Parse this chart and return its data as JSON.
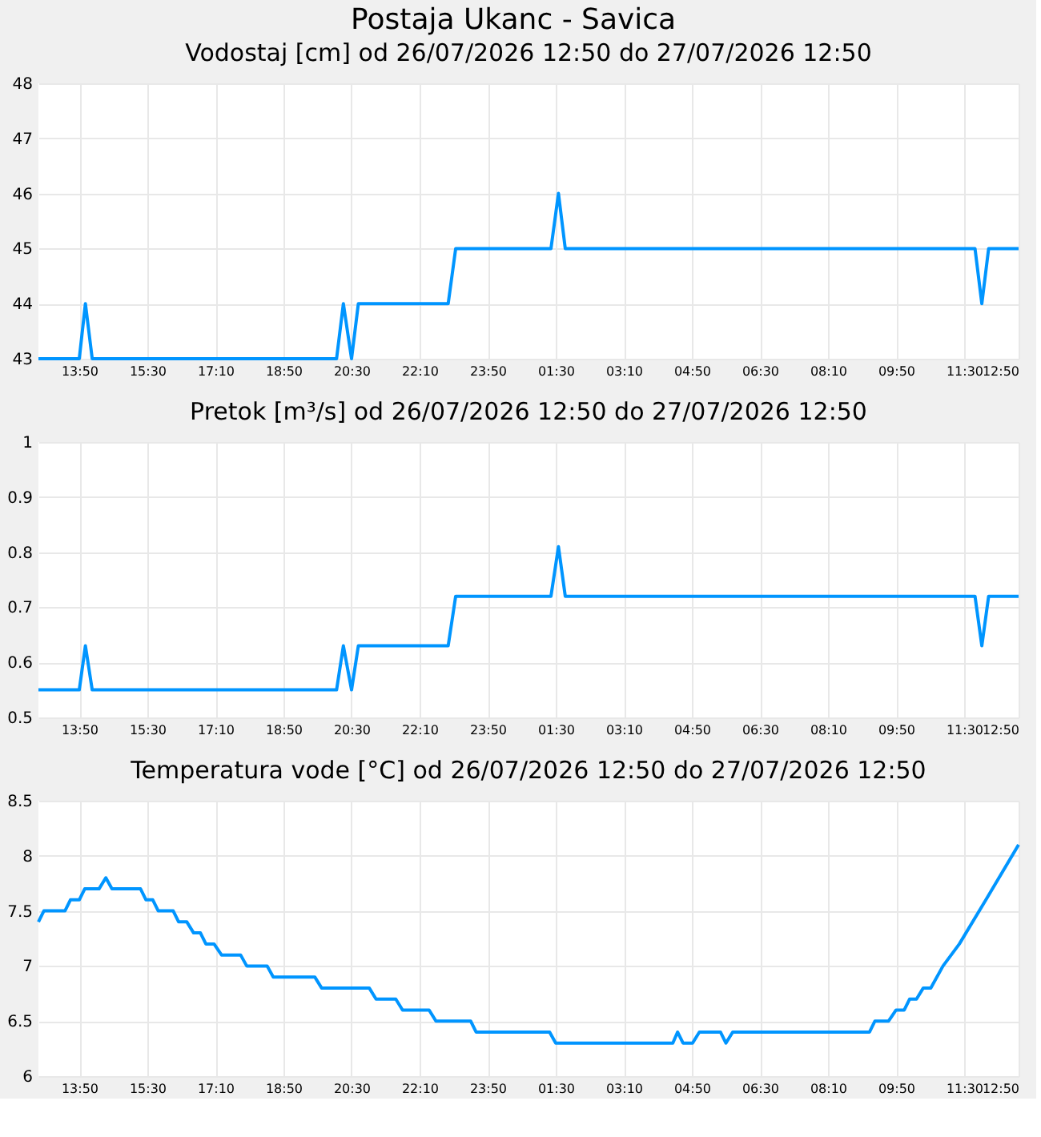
{
  "chart_data": [
    {
      "type": "line",
      "title": "Postaja Ukanc - Savica",
      "subtitle": "Vodostaj [cm] od 26/07/2026 12:50 do 27/07/2026 12:50",
      "grid": true,
      "marker": "none",
      "line_style": "solid",
      "xlim": [
        "2026-07-26T12:50",
        "2026-07-27T12:50"
      ],
      "xticks": [
        {
          "value": "2026-07-26T13:50",
          "label": "13:50"
        },
        {
          "value": "2026-07-26T15:30",
          "label": "15:30"
        },
        {
          "value": "2026-07-26T17:10",
          "label": "17:10"
        },
        {
          "value": "2026-07-26T18:50",
          "label": "18:50"
        },
        {
          "value": "2026-07-26T20:30",
          "label": "20:30"
        },
        {
          "value": "2026-07-26T22:10",
          "label": "22:10"
        },
        {
          "value": "2026-07-26T23:50",
          "label": "23:50"
        },
        {
          "value": "2026-07-27T01:30",
          "label": "01:30"
        },
        {
          "value": "2026-07-27T03:10",
          "label": "03:10"
        },
        {
          "value": "2026-07-27T04:50",
          "label": "04:50"
        },
        {
          "value": "2026-07-27T06:30",
          "label": "06:30"
        },
        {
          "value": "2026-07-27T08:10",
          "label": "08:10"
        },
        {
          "value": "2026-07-27T09:50",
          "label": "09:50"
        },
        {
          "value": "2026-07-27T11:30",
          "label": "11:30"
        },
        {
          "value": "2026-07-27T12:50",
          "label": "12:50"
        }
      ],
      "ylim": [
        43,
        48
      ],
      "yticks": [
        43,
        44,
        45,
        46,
        47,
        48
      ],
      "series": [
        {
          "color": "#0095ff",
          "x": [
            "2026-07-26T12:50",
            "2026-07-26T13:50",
            "2026-07-26T13:59",
            "2026-07-26T14:09",
            "2026-07-26T20:08",
            "2026-07-26T20:18",
            "2026-07-26T20:30",
            "2026-07-26T20:40",
            "2026-07-26T22:52",
            "2026-07-26T23:03",
            "2026-07-27T01:23",
            "2026-07-27T01:34",
            "2026-07-27T01:44",
            "2026-07-27T11:46",
            "2026-07-27T11:56",
            "2026-07-27T12:06",
            "2026-07-27T12:50"
          ],
          "values": [
            43,
            43,
            44,
            43,
            43,
            44,
            43,
            44,
            44,
            45,
            45,
            46,
            45,
            45,
            44,
            45,
            45
          ]
        }
      ]
    },
    {
      "type": "line",
      "title": "Pretok [m³/s] od 26/07/2026 12:50 do 27/07/2026 12:50",
      "grid": true,
      "marker": "none",
      "line_style": "solid",
      "xlim": [
        "2026-07-26T12:50",
        "2026-07-27T12:50"
      ],
      "xticks": [
        {
          "value": "2026-07-26T13:50",
          "label": "13:50"
        },
        {
          "value": "2026-07-26T15:30",
          "label": "15:30"
        },
        {
          "value": "2026-07-26T17:10",
          "label": "17:10"
        },
        {
          "value": "2026-07-26T18:50",
          "label": "18:50"
        },
        {
          "value": "2026-07-26T20:30",
          "label": "20:30"
        },
        {
          "value": "2026-07-26T22:10",
          "label": "22:10"
        },
        {
          "value": "2026-07-26T23:50",
          "label": "23:50"
        },
        {
          "value": "2026-07-27T01:30",
          "label": "01:30"
        },
        {
          "value": "2026-07-27T03:10",
          "label": "03:10"
        },
        {
          "value": "2026-07-27T04:50",
          "label": "04:50"
        },
        {
          "value": "2026-07-27T06:30",
          "label": "06:30"
        },
        {
          "value": "2026-07-27T08:10",
          "label": "08:10"
        },
        {
          "value": "2026-07-27T09:50",
          "label": "09:50"
        },
        {
          "value": "2026-07-27T11:30",
          "label": "11:30"
        },
        {
          "value": "2026-07-27T12:50",
          "label": "12:50"
        }
      ],
      "ylim": [
        0.5,
        1
      ],
      "yticks": [
        0.5,
        0.6,
        0.7,
        0.8,
        0.9,
        1
      ],
      "series": [
        {
          "color": "#0095ff",
          "x": [
            "2026-07-26T12:50",
            "2026-07-26T13:50",
            "2026-07-26T13:59",
            "2026-07-26T14:09",
            "2026-07-26T20:08",
            "2026-07-26T20:18",
            "2026-07-26T20:30",
            "2026-07-26T20:40",
            "2026-07-26T22:52",
            "2026-07-26T23:03",
            "2026-07-27T01:23",
            "2026-07-27T01:34",
            "2026-07-27T01:44",
            "2026-07-27T11:46",
            "2026-07-27T11:56",
            "2026-07-27T12:06",
            "2026-07-27T12:50"
          ],
          "values": [
            0.55,
            0.55,
            0.63,
            0.55,
            0.55,
            0.63,
            0.55,
            0.63,
            0.63,
            0.72,
            0.72,
            0.81,
            0.72,
            0.72,
            0.63,
            0.72,
            0.72
          ]
        }
      ]
    },
    {
      "type": "line",
      "title": "Temperatura vode [°C] od 26/07/2026 12:50 do 27/07/2026 12:50",
      "grid": true,
      "marker": "none",
      "line_style": "solid",
      "xlim": [
        "2026-07-26T12:50",
        "2026-07-27T12:50"
      ],
      "xticks": [
        {
          "value": "2026-07-26T13:50",
          "label": "13:50"
        },
        {
          "value": "2026-07-26T15:30",
          "label": "15:30"
        },
        {
          "value": "2026-07-26T17:10",
          "label": "17:10"
        },
        {
          "value": "2026-07-26T18:50",
          "label": "18:50"
        },
        {
          "value": "2026-07-26T20:30",
          "label": "20:30"
        },
        {
          "value": "2026-07-26T22:10",
          "label": "22:10"
        },
        {
          "value": "2026-07-26T23:50",
          "label": "23:50"
        },
        {
          "value": "2026-07-27T01:30",
          "label": "01:30"
        },
        {
          "value": "2026-07-27T03:10",
          "label": "03:10"
        },
        {
          "value": "2026-07-27T04:50",
          "label": "04:50"
        },
        {
          "value": "2026-07-27T06:30",
          "label": "06:30"
        },
        {
          "value": "2026-07-27T08:10",
          "label": "08:10"
        },
        {
          "value": "2026-07-27T09:50",
          "label": "09:50"
        },
        {
          "value": "2026-07-27T11:30",
          "label": "11:30"
        },
        {
          "value": "2026-07-27T12:50",
          "label": "12:50"
        }
      ],
      "ylim": [
        6,
        8.5
      ],
      "yticks": [
        6,
        6.5,
        7,
        7.5,
        8,
        8.5
      ],
      "series": [
        {
          "color": "#0095ff",
          "x": [
            "2026-07-26T12:50",
            "2026-07-26T12:58",
            "2026-07-26T13:29",
            "2026-07-26T13:37",
            "2026-07-26T13:50",
            "2026-07-26T13:58",
            "2026-07-26T14:19",
            "2026-07-26T14:29",
            "2026-07-26T14:38",
            "2026-07-26T15:20",
            "2026-07-26T15:28",
            "2026-07-26T15:38",
            "2026-07-26T15:46",
            "2026-07-26T16:08",
            "2026-07-26T16:16",
            "2026-07-26T16:28",
            "2026-07-26T16:38",
            "2026-07-26T16:48",
            "2026-07-26T16:56",
            "2026-07-26T17:08",
            "2026-07-26T17:19",
            "2026-07-26T17:47",
            "2026-07-26T17:56",
            "2026-07-26T18:26",
            "2026-07-26T18:35",
            "2026-07-26T19:36",
            "2026-07-26T19:46",
            "2026-07-26T20:56",
            "2026-07-26T21:06",
            "2026-07-26T21:35",
            "2026-07-26T21:45",
            "2026-07-26T22:24",
            "2026-07-26T22:34",
            "2026-07-26T23:25",
            "2026-07-26T23:33",
            "2026-07-27T01:21",
            "2026-07-27T01:30",
            "2026-07-27T04:22",
            "2026-07-27T04:29",
            "2026-07-27T04:37",
            "2026-07-27T04:51",
            "2026-07-27T05:01",
            "2026-07-27T05:32",
            "2026-07-27T05:40",
            "2026-07-27T05:50",
            "2026-07-27T09:11",
            "2026-07-27T09:19",
            "2026-07-27T09:39",
            "2026-07-27T09:50",
            "2026-07-27T10:02",
            "2026-07-27T10:10",
            "2026-07-27T10:20",
            "2026-07-27T10:30",
            "2026-07-27T10:41",
            "2026-07-27T10:59",
            "2026-07-27T11:23",
            "2026-07-27T12:02",
            "2026-07-27T12:50"
          ],
          "values": [
            7.4,
            7.5,
            7.5,
            7.6,
            7.6,
            7.7,
            7.7,
            7.8,
            7.7,
            7.7,
            7.6,
            7.6,
            7.5,
            7.5,
            7.4,
            7.4,
            7.3,
            7.3,
            7.2,
            7.2,
            7.1,
            7.1,
            7.0,
            7.0,
            6.9,
            6.9,
            6.8,
            6.8,
            6.7,
            6.7,
            6.6,
            6.6,
            6.5,
            6.5,
            6.4,
            6.4,
            6.3,
            6.3,
            6.4,
            6.3,
            6.3,
            6.4,
            6.4,
            6.3,
            6.4,
            6.4,
            6.5,
            6.5,
            6.6,
            6.6,
            6.7,
            6.7,
            6.8,
            6.8,
            7.0,
            7.2,
            7.6,
            8.1
          ]
        }
      ]
    }
  ]
}
